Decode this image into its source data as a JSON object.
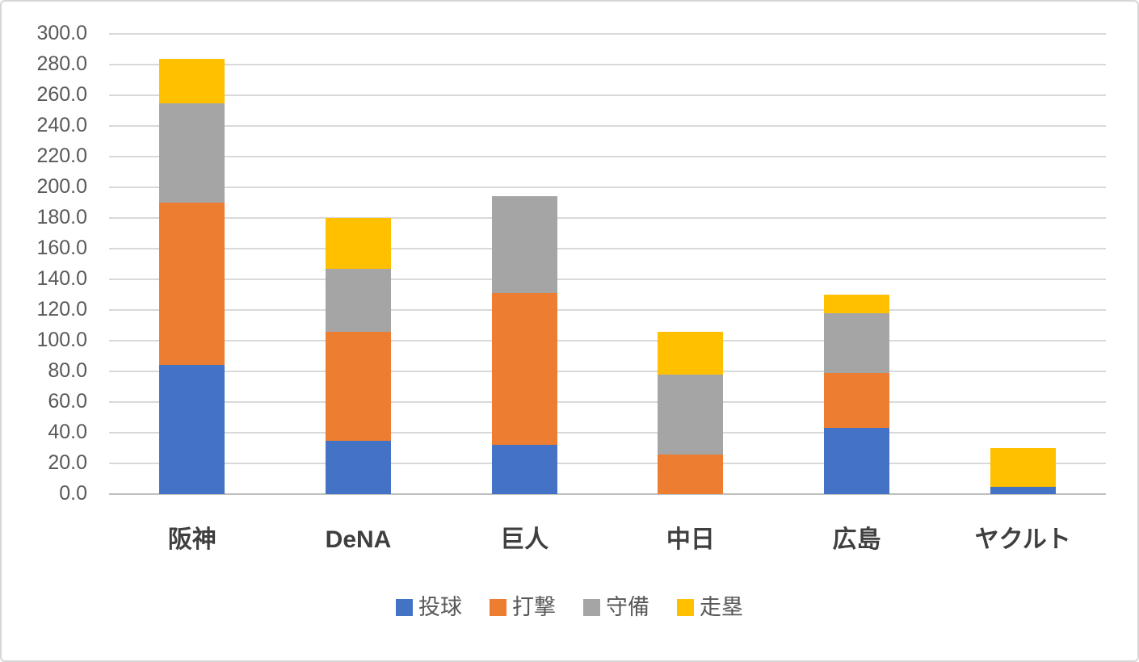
{
  "chart_data": {
    "type": "bar",
    "stacked": true,
    "title": "",
    "xlabel": "",
    "ylabel": "",
    "categories": [
      "阪神",
      "DeNA",
      "巨人",
      "中日",
      "広島",
      "ヤクルト"
    ],
    "series": [
      {
        "name": "投球",
        "color": "#4472C4",
        "values": [
          84,
          35,
          32,
          0,
          43,
          5
        ]
      },
      {
        "name": "打撃",
        "color": "#ED7D31",
        "values": [
          106,
          71,
          99,
          26,
          36,
          0
        ]
      },
      {
        "name": "守備",
        "color": "#A5A5A5",
        "values": [
          65,
          41,
          63,
          52,
          39,
          0
        ]
      },
      {
        "name": "走塁",
        "color": "#FFC000",
        "values": [
          28.5,
          33,
          0,
          28,
          12,
          25
        ]
      }
    ],
    "totals": [
      283.5,
      180,
      194,
      106,
      130,
      30
    ],
    "ylim": [
      0,
      300
    ],
    "y_tick_step": 20,
    "y_tick_labels": [
      "0.0",
      "20.0",
      "40.0",
      "60.0",
      "80.0",
      "100.0",
      "120.0",
      "140.0",
      "160.0",
      "180.0",
      "200.0",
      "220.0",
      "240.0",
      "260.0",
      "280.0",
      "300.0"
    ],
    "grid": true,
    "legend_position": "bottom",
    "gridline_color": "#D9D9D9",
    "axis_line_color": "#BFBFBF",
    "tick_label_color": "#595959",
    "category_label_color": "#3F3F3F"
  }
}
